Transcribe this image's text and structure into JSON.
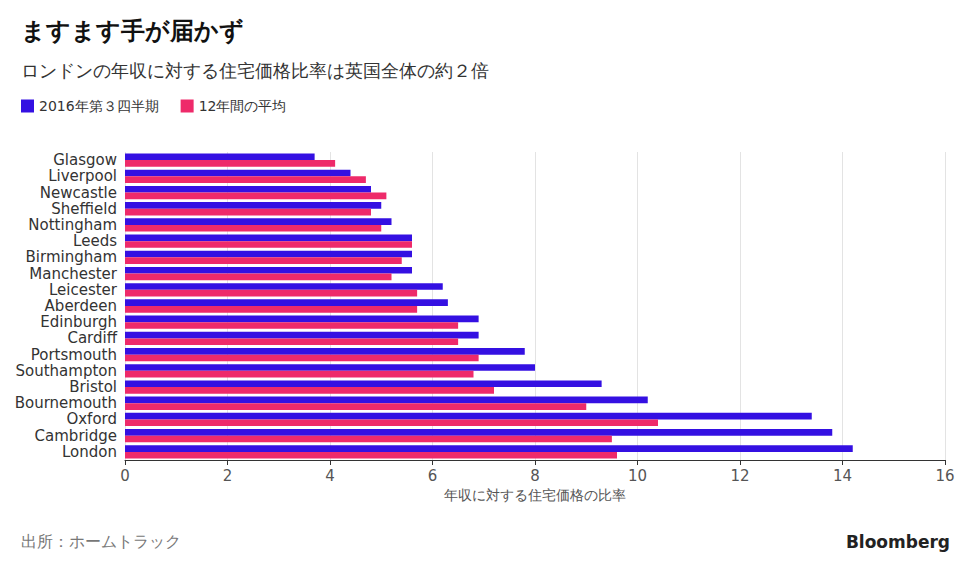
{
  "chart_data": {
    "type": "bar",
    "orientation": "horizontal",
    "title": "ますます手が届かず",
    "subtitle": "ロンドンの年収に対する住宅価格比率は英国全体の約２倍",
    "x_label": "年収に対する住宅価格の比率",
    "source": "出所：ホームトラック",
    "credit": "Bloomberg",
    "categories": [
      "Glasgow",
      "Liverpool",
      "Newcastle",
      "Sheffield",
      "Nottingham",
      "Leeds",
      "Birmingham",
      "Manchester",
      "Leicester",
      "Aberdeen",
      "Edinburgh",
      "Cardiff",
      "Portsmouth",
      "Southampton",
      "Bristol",
      "Bournemouth",
      "Oxford",
      "Cambridge",
      "London"
    ],
    "series": [
      {
        "name": "2016年第３四半期",
        "color": "#3410e2",
        "values": [
          3.7,
          4.4,
          4.8,
          5.0,
          5.2,
          5.6,
          5.6,
          5.6,
          6.2,
          6.3,
          6.9,
          6.9,
          7.8,
          8.0,
          9.3,
          10.2,
          13.4,
          13.8,
          14.2
        ]
      },
      {
        "name": "12年間の平均",
        "color": "#ee2a6a",
        "values": [
          4.1,
          4.7,
          5.1,
          4.8,
          5.0,
          5.6,
          5.4,
          5.2,
          5.7,
          5.7,
          6.5,
          6.5,
          6.9,
          6.8,
          7.2,
          9.0,
          10.4,
          9.5,
          9.6
        ]
      }
    ],
    "xlim": [
      0,
      16
    ],
    "xticks": [
      0,
      2,
      4,
      6,
      8,
      10,
      12,
      14,
      16
    ],
    "grid": true,
    "legend": "top-left"
  }
}
